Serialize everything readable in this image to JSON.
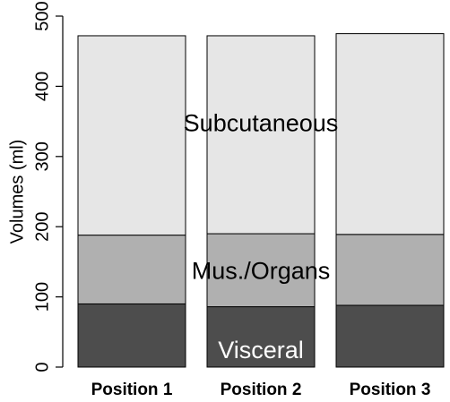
{
  "chart_data": {
    "type": "bar",
    "stacked": true,
    "categories": [
      "Position 1",
      "Position 2",
      "Position 3"
    ],
    "series": [
      {
        "values": [
          90,
          86,
          88
        ],
        "color": "#4d4d4d"
      },
      {
        "values": [
          98,
          104,
          101
        ],
        "color": "#b0b0b0"
      },
      {
        "values": [
          284,
          282,
          286
        ],
        "color": "#e6e6e6"
      }
    ],
    "annotations": [
      {
        "text": "Subcutaneous",
        "category": 1,
        "y": 345,
        "color": "#000000"
      },
      {
        "text": "Mus./Organs",
        "category": 1,
        "y": 135,
        "color": "#000000"
      },
      {
        "text": "Visceral",
        "category": 1,
        "y": 22,
        "color": "#ffffff"
      }
    ],
    "ylabel": "Volumes (ml)",
    "xlabel": "",
    "ylim": [
      0,
      500
    ],
    "yticks": [
      0,
      100,
      200,
      300,
      400,
      500
    ],
    "grid": false,
    "legend": "none"
  }
}
